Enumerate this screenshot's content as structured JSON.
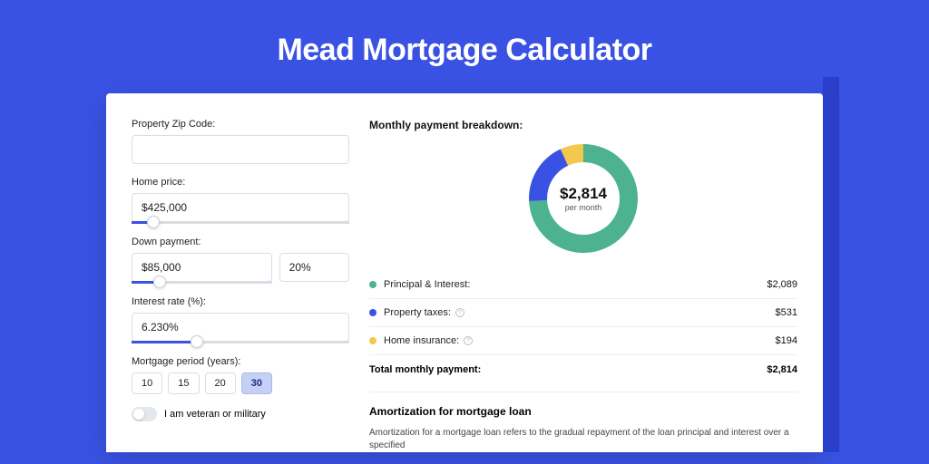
{
  "page": {
    "title": "Mead Mortgage Calculator",
    "background_color": "#3952e3",
    "card_background": "#ffffff"
  },
  "form": {
    "zip": {
      "label": "Property Zip Code:",
      "value": ""
    },
    "home_price": {
      "label": "Home price:",
      "value": "$425,000",
      "slider_pct": 10
    },
    "down_payment": {
      "label": "Down payment:",
      "amount": "$85,000",
      "percent": "20%",
      "slider_pct": 20
    },
    "interest_rate": {
      "label": "Interest rate (%):",
      "value": "6.230%",
      "slider_pct": 30
    },
    "period": {
      "label": "Mortgage period (years):",
      "options": [
        "10",
        "15",
        "20",
        "30"
      ],
      "selected": "30"
    },
    "veteran": {
      "label": "I am veteran or military",
      "checked": false
    }
  },
  "breakdown": {
    "title": "Monthly payment breakdown:",
    "center_amount": "$2,814",
    "center_sub": "per month",
    "donut": {
      "size": 124,
      "thickness": 20,
      "slices": [
        {
          "label": "Principal & Interest:",
          "value": "$2,089",
          "color": "#4cb28f",
          "pct": 74.2
        },
        {
          "label": "Property taxes:",
          "value": "$531",
          "color": "#3952e3",
          "pct": 18.9,
          "info": true
        },
        {
          "label": "Home insurance:",
          "value": "$194",
          "color": "#f2c94c",
          "pct": 6.9,
          "info": true
        }
      ]
    },
    "total": {
      "label": "Total monthly payment:",
      "value": "$2,814"
    }
  },
  "amortization": {
    "title": "Amortization for mortgage loan",
    "text": "Amortization for a mortgage loan refers to the gradual repayment of the loan principal and interest over a specified"
  }
}
